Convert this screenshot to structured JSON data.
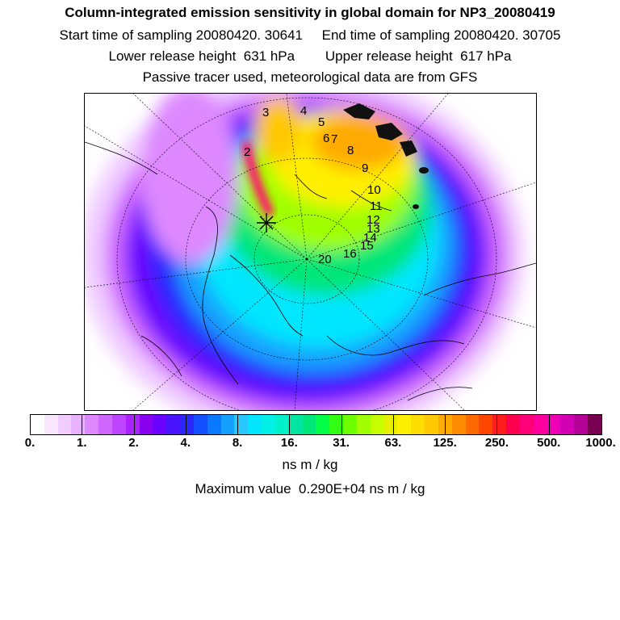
{
  "header": {
    "title": "Column-integrated emission sensitivity in global domain for NP3_20080419",
    "sampling_line": "Start time of sampling 20080420. 30641     End time of sampling 20080420. 30705",
    "release_line": "Lower release height  631 hPa        Upper release height  617 hPa",
    "tracer_line": "Passive tracer used, meteorological data are from GFS"
  },
  "map": {
    "trajectory_labels": [
      "2",
      "3",
      "4",
      "5",
      "6",
      "7",
      "8",
      "9",
      "10",
      "11",
      "12",
      "13",
      "14",
      "15",
      "16",
      "20"
    ]
  },
  "colorbar": {
    "colors": [
      "#ffffff",
      "#f8e6ff",
      "#f0ccff",
      "#e8b2ff",
      "#dd88ff",
      "#cf66ff",
      "#bf44ff",
      "#aa22ff",
      "#8800ee",
      "#6a00ff",
      "#4b14ff",
      "#2828ff",
      "#1450ff",
      "#0a78ff",
      "#14a0ff",
      "#28c8ff",
      "#00e6ff",
      "#00f0e6",
      "#00f0c8",
      "#00e6a0",
      "#00e678",
      "#00ff46",
      "#32ff14",
      "#6eff00",
      "#a0ff00",
      "#c8ff00",
      "#e6f000",
      "#fff000",
      "#ffdc00",
      "#ffc800",
      "#ffaa00",
      "#ff8c00",
      "#ff6a00",
      "#ff4600",
      "#ff1e1e",
      "#ff0050",
      "#ff0078",
      "#ff00a0",
      "#f000b4",
      "#d200b4",
      "#b40096",
      "#780050"
    ],
    "tick_labels": [
      "0.",
      "1.",
      "2.",
      "4.",
      "8.",
      "16.",
      "31.",
      "63.",
      "125.",
      "250.",
      "500.",
      "1000."
    ]
  },
  "units": "ns m / kg",
  "max_value_line": "Maximum value  0.290E+04 ns m / kg"
}
